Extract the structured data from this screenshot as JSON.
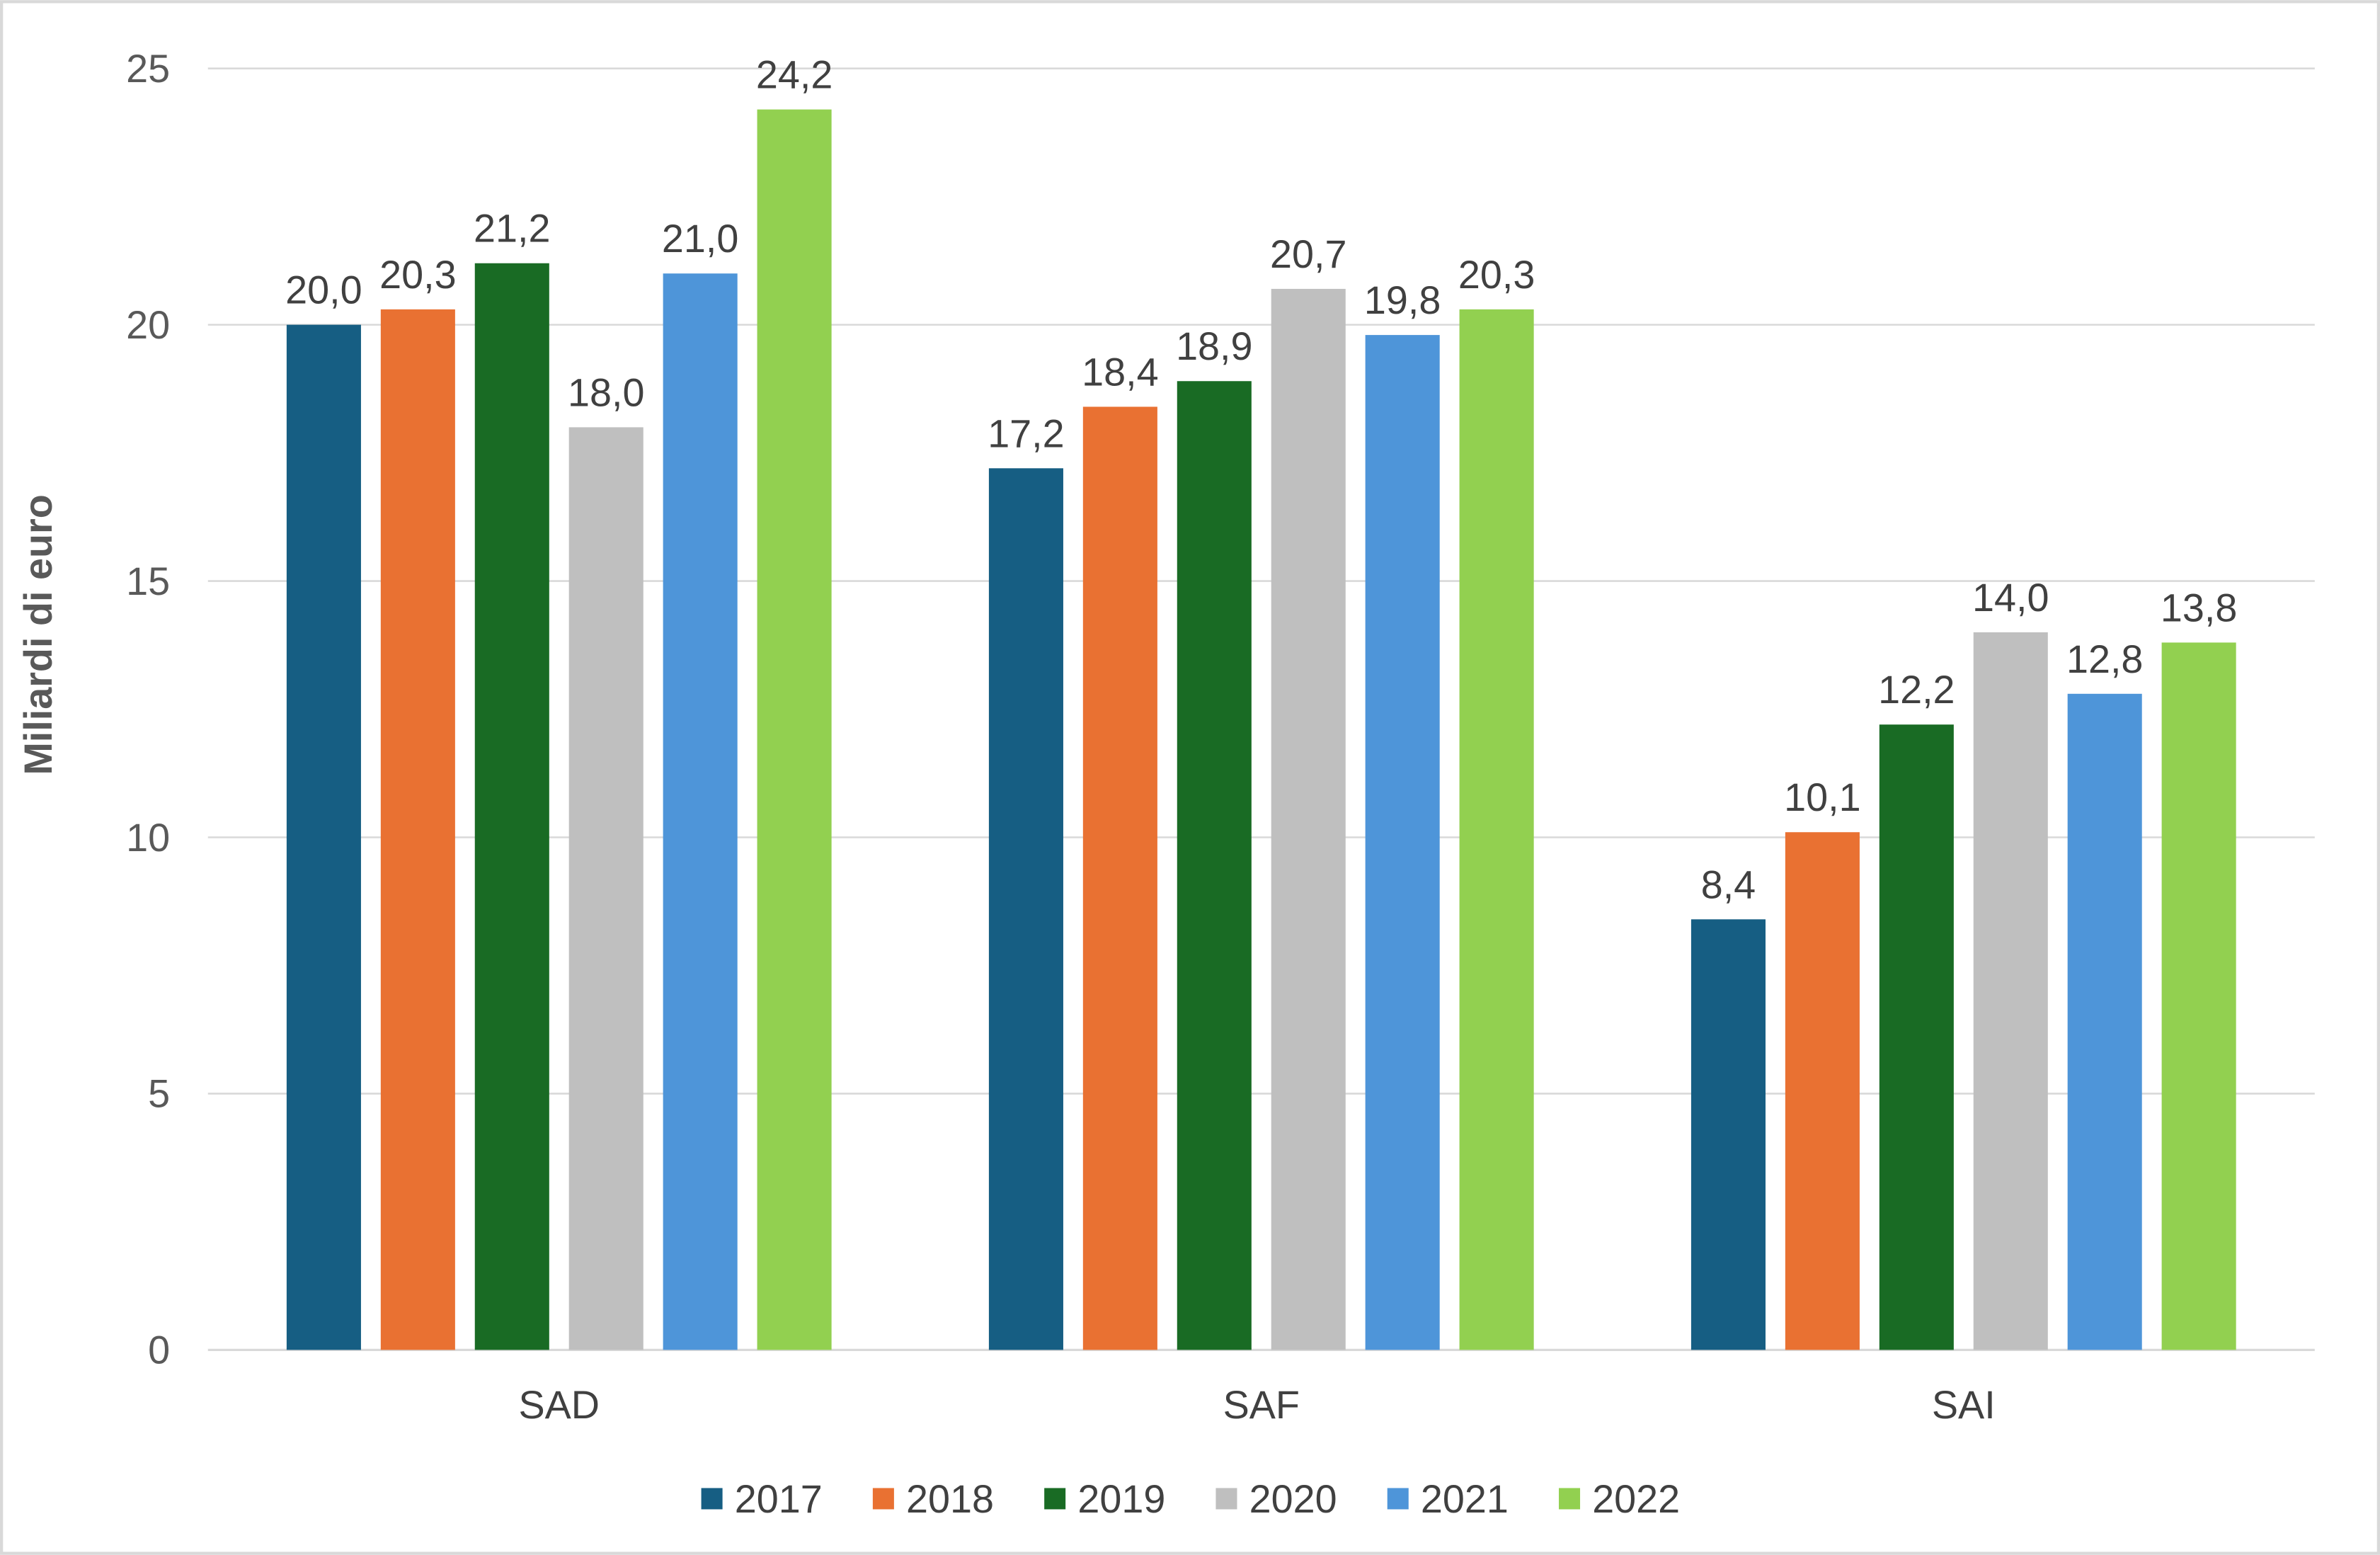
{
  "chart_data": {
    "type": "bar",
    "title": "",
    "xlabel": "",
    "ylabel": "Miliardi di euro",
    "ylim": [
      0,
      25
    ],
    "yticks": [
      0,
      5,
      10,
      15,
      20,
      25
    ],
    "grid": true,
    "legend_position": "bottom",
    "categories": [
      "SAD",
      "SAF",
      "SAI"
    ],
    "series": [
      {
        "name": "2017",
        "color": "#165E83",
        "values": [
          20.0,
          17.2,
          8.4
        ],
        "labels": [
          "20,0",
          "17,2",
          "8,4"
        ]
      },
      {
        "name": "2018",
        "color": "#E97132",
        "values": [
          20.3,
          18.4,
          10.1
        ],
        "labels": [
          "20,3",
          "18,4",
          "10,1"
        ]
      },
      {
        "name": "2019",
        "color": "#196B24",
        "values": [
          21.2,
          18.9,
          12.2
        ],
        "labels": [
          "21,2",
          "18,9",
          "12,2"
        ]
      },
      {
        "name": "2020",
        "color": "#BFBFBF",
        "values": [
          18.0,
          20.7,
          14.0
        ],
        "labels": [
          "18,0",
          "20,7",
          "14,0"
        ]
      },
      {
        "name": "2021",
        "color": "#4E95D9",
        "values": [
          21.0,
          19.8,
          12.8
        ],
        "labels": [
          "21,0",
          "19,8",
          "12,8"
        ]
      },
      {
        "name": "2022",
        "color": "#92D050",
        "values": [
          24.2,
          20.3,
          13.8
        ],
        "labels": [
          "24,2",
          "20,3",
          "13,8"
        ]
      }
    ]
  }
}
